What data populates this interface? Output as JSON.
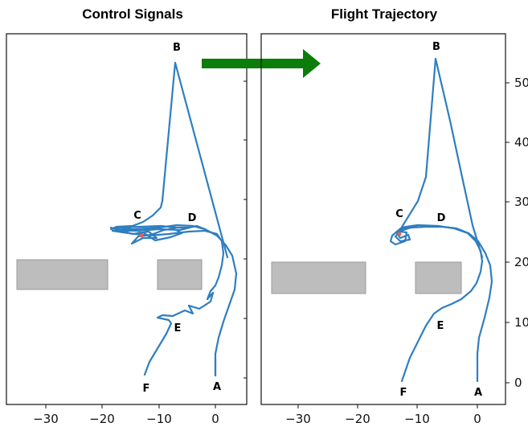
{
  "panels": [
    {
      "title": "Control Signals",
      "x_ticks": [
        "−30",
        "−20",
        "−10",
        "0"
      ],
      "y_ticks": [],
      "points": [
        "A",
        "B",
        "C",
        "D",
        "E",
        "F"
      ]
    },
    {
      "title": "Flight Trajectory",
      "x_ticks": [
        "−30",
        "−20",
        "−10",
        "0"
      ],
      "y_ticks": [
        "0",
        "10",
        "20",
        "30",
        "40",
        "50"
      ],
      "points": [
        "A",
        "B",
        "C",
        "D",
        "E",
        "F"
      ]
    }
  ],
  "colors": {
    "trajectory": "#2f7ebf",
    "arrow": "#0a7d0a",
    "obstacle": "#bdbdbd",
    "marker": "#e06060"
  },
  "arrow_icon": "right-arrow-icon"
}
